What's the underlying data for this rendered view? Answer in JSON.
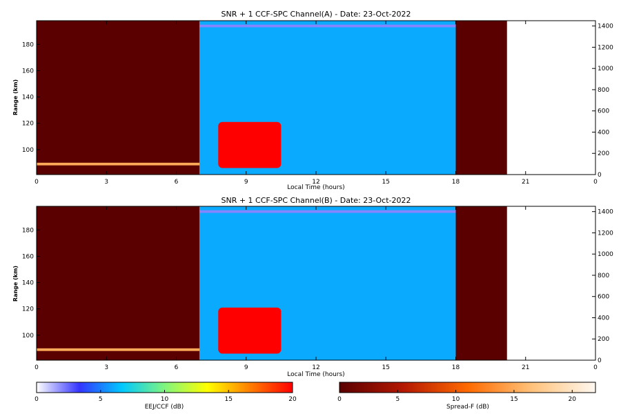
{
  "chart_data": [
    {
      "type": "heatmap",
      "title": "SNR + 1 CCF-SPC Channel(A) - Date: 23-Oct-2022",
      "xlabel": "Local Time (hours)",
      "ylabel": "Range (km)",
      "xlim": [
        0,
        24
      ],
      "ylim": [
        81,
        198
      ],
      "xticks": [
        "0",
        "3",
        "6",
        "9",
        "12",
        "15",
        "18",
        "21",
        "0"
      ],
      "yticks": [
        "100",
        "120",
        "140",
        "160",
        "180"
      ],
      "right_ylim": [
        0,
        1450
      ],
      "right_yticks": [
        "0",
        "200",
        "400",
        "600",
        "800",
        "1000",
        "1200",
        "1400"
      ],
      "regions": [
        {
          "name": "Spread-F",
          "x": [
            0,
            7.0
          ],
          "level_db": 0
        },
        {
          "name": "EEJ/CCF",
          "x": [
            7.0,
            18.0
          ],
          "level_db": 6
        },
        {
          "name": "Spread-F",
          "x": [
            18.0,
            20.2
          ],
          "level_db": 0
        }
      ],
      "layers": [
        {
          "name": "Spread-F",
          "x": [
            0,
            7.0
          ],
          "y": [
            88,
            90
          ],
          "level_db": 15
        },
        {
          "name": "EEJ/CCF",
          "x": [
            7.8,
            10.5
          ],
          "y": [
            86,
            121
          ],
          "level_db": 20
        },
        {
          "name": "EEJ/CCF",
          "x": [
            7.0,
            18.0
          ],
          "y": [
            193,
            195
          ],
          "level_db": 2
        }
      ]
    },
    {
      "type": "heatmap",
      "title": "SNR + 1 CCF-SPC Channel(B) - Date: 23-Oct-2022",
      "xlabel": "Local Time (hours)",
      "ylabel": "Range (km)",
      "xlim": [
        0,
        24
      ],
      "ylim": [
        81,
        198
      ],
      "xticks": [
        "0",
        "3",
        "6",
        "9",
        "12",
        "15",
        "18",
        "21",
        "0"
      ],
      "yticks": [
        "100",
        "120",
        "140",
        "160",
        "180"
      ],
      "right_ylim": [
        0,
        1450
      ],
      "right_yticks": [
        "0",
        "200",
        "400",
        "600",
        "800",
        "1000",
        "1200",
        "1400"
      ],
      "regions": [
        {
          "name": "Spread-F",
          "x": [
            0,
            7.0
          ],
          "level_db": 0
        },
        {
          "name": "EEJ/CCF",
          "x": [
            7.0,
            18.0
          ],
          "level_db": 6
        },
        {
          "name": "Spread-F",
          "x": [
            18.0,
            20.2
          ],
          "level_db": 0
        }
      ],
      "layers": [
        {
          "name": "Spread-F",
          "x": [
            0,
            7.0
          ],
          "y": [
            88,
            90
          ],
          "level_db": 15
        },
        {
          "name": "EEJ/CCF",
          "x": [
            7.8,
            10.5
          ],
          "y": [
            86,
            121
          ],
          "level_db": 20
        },
        {
          "name": "EEJ/CCF",
          "x": [
            7.0,
            18.0
          ],
          "y": [
            193,
            195
          ],
          "level_db": 2
        }
      ]
    }
  ],
  "colorbars": [
    {
      "label": "EEJ/CCF (dB)",
      "range": [
        0,
        20
      ],
      "ticks": [
        "0",
        "5",
        "10",
        "15",
        "20"
      ],
      "colors": [
        "#ffffff",
        "#3434ff",
        "#00c8ff",
        "#7ff57f",
        "#ffff00",
        "#ff7f00",
        "#ff0000"
      ]
    },
    {
      "label": "Spread-F (dB)",
      "range": [
        0,
        22
      ],
      "ticks": [
        "0",
        "5",
        "10",
        "15",
        "20"
      ],
      "colors": [
        "#5a0000",
        "#b41800",
        "#ff6a00",
        "#ffc27a",
        "#fff8f0"
      ]
    }
  ]
}
